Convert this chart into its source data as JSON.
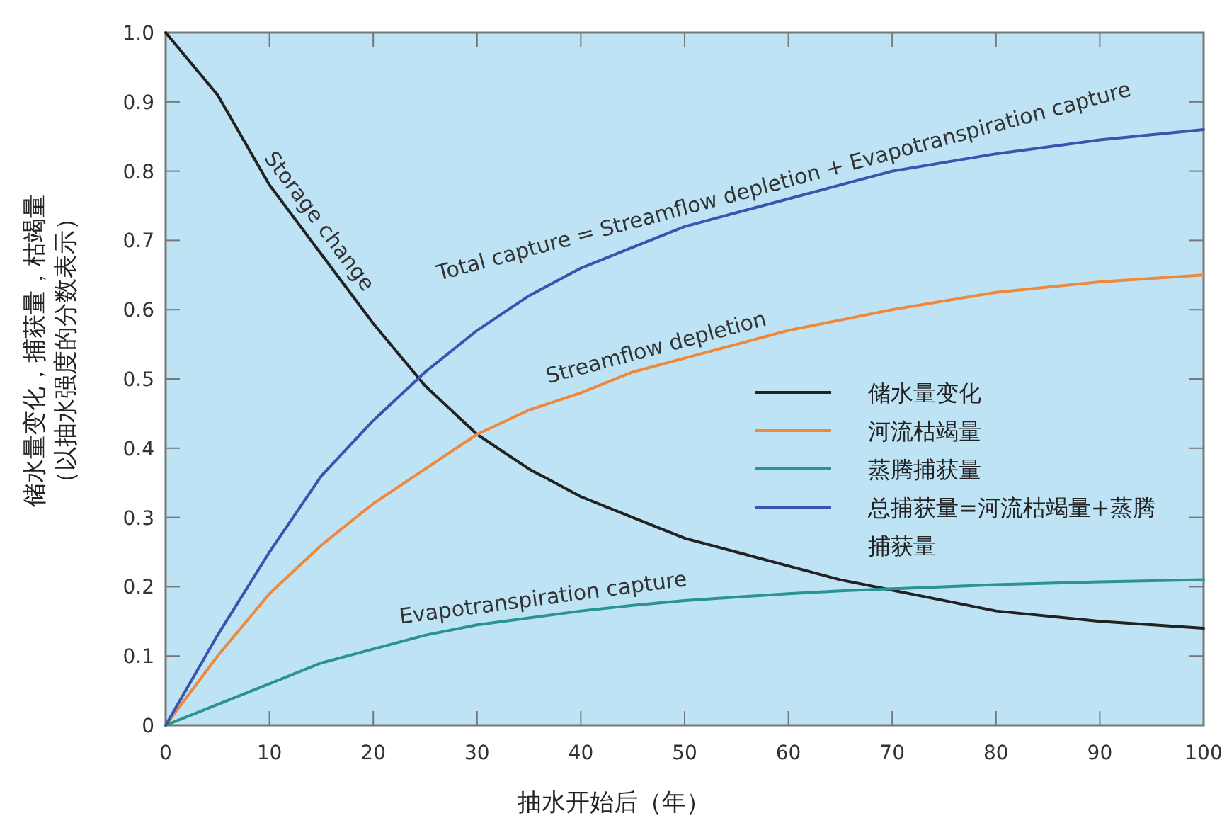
{
  "chart_data": {
    "type": "line",
    "xlabel": "抽水开始后（年）",
    "ylabel": "储水量变化，捕获量，枯竭量（以抽水强度的分数表示）",
    "xlim": [
      0,
      100
    ],
    "ylim": [
      0,
      1.0
    ],
    "xticks": [
      0,
      10,
      20,
      30,
      40,
      50,
      60,
      70,
      80,
      90,
      100
    ],
    "yticks": [
      0,
      0.1,
      0.2,
      0.3,
      0.4,
      0.5,
      0.6,
      0.7,
      0.8,
      0.9,
      {
        "value": 1.0,
        "label": "1.0"
      }
    ],
    "x": [
      0,
      5,
      10,
      15,
      20,
      25,
      30,
      35,
      40,
      45,
      50,
      55,
      60,
      65,
      70,
      80,
      90,
      100
    ],
    "legend": "right",
    "grid": false,
    "marker": "none",
    "line_style": "solid",
    "series": [
      {
        "name": "储水量变化",
        "color": "#222222",
        "values": [
          1.0,
          0.91,
          0.78,
          0.68,
          0.58,
          0.49,
          0.42,
          0.37,
          0.33,
          0.3,
          0.27,
          0.25,
          0.23,
          0.21,
          0.195,
          0.165,
          0.15,
          0.14
        ]
      },
      {
        "name": "河流枯竭量",
        "color": "#f0883a",
        "values": [
          0,
          0.1,
          0.19,
          0.26,
          0.32,
          0.37,
          0.42,
          0.455,
          0.48,
          0.51,
          0.53,
          0.55,
          0.57,
          0.585,
          0.6,
          0.625,
          0.64,
          0.65
        ]
      },
      {
        "name": "蒸腾捕获量",
        "color": "#2a9490",
        "values": [
          0,
          0.03,
          0.06,
          0.09,
          0.11,
          0.13,
          0.145,
          0.155,
          0.165,
          0.173,
          0.18,
          0.185,
          0.19,
          0.194,
          0.197,
          0.203,
          0.207,
          0.21
        ]
      },
      {
        "name": "总捕获量=河流枯竭量+蒸腾捕获量",
        "color": "#3a55b0",
        "values": [
          0,
          0.13,
          0.25,
          0.36,
          0.44,
          0.51,
          0.57,
          0.62,
          0.66,
          0.69,
          0.72,
          0.74,
          0.76,
          0.78,
          0.8,
          0.825,
          0.845,
          0.86
        ]
      }
    ],
    "annotations": [
      {
        "text": "Storage change",
        "x": 13.4,
        "y": 0.712
      },
      {
        "text": "Total capture = Streamflow depletion + Evapotranspiration capture",
        "x": 60,
        "y": 0.76
      },
      {
        "text": "Streamflow depletion",
        "x": 47.7,
        "y": 0.52
      },
      {
        "text": "Evapotranspiration capture",
        "x": 36.6,
        "y": 0.158
      }
    ]
  }
}
